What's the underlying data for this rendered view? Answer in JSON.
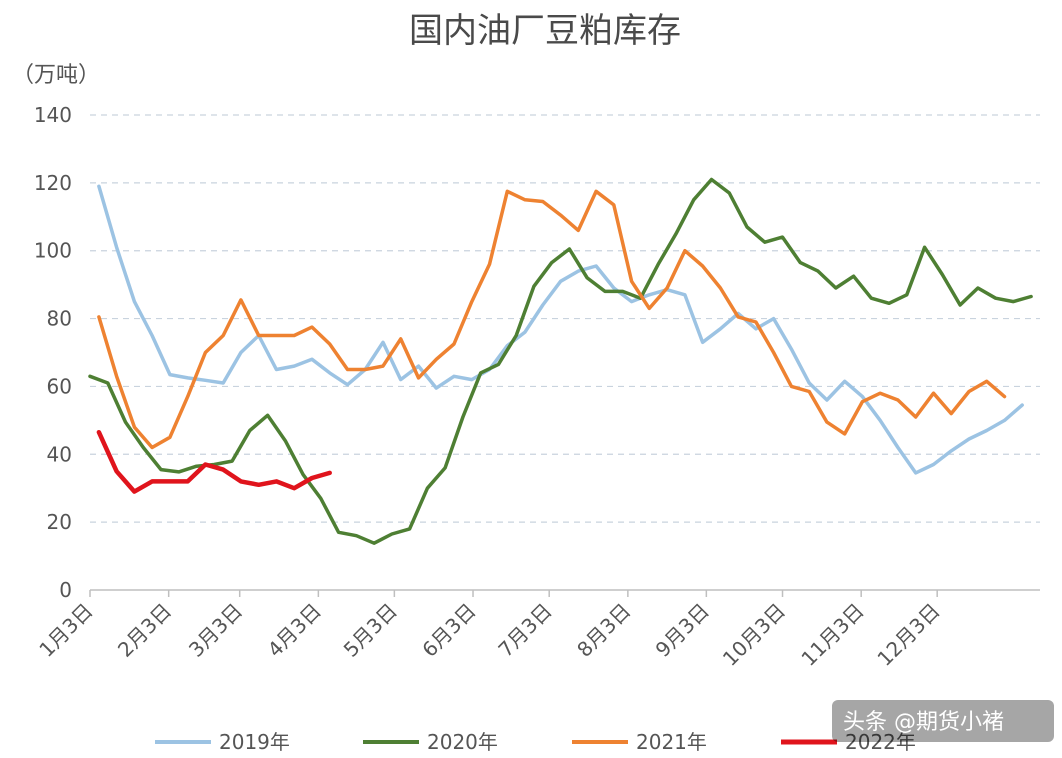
{
  "chart_data": {
    "type": "line",
    "title": "国内油厂豆粕库存",
    "unit_label": "（万吨）",
    "ylim": [
      0,
      140
    ],
    "y_ticks": [
      0,
      20,
      40,
      60,
      80,
      100,
      120,
      140
    ],
    "grid": true,
    "legend_position": "bottom",
    "x_ticks": [
      {
        "label": "1月3日",
        "week": 1
      },
      {
        "label": "2月3日",
        "week": 5.43
      },
      {
        "label": "3月3日",
        "week": 9.43
      },
      {
        "label": "4月3日",
        "week": 13.86
      },
      {
        "label": "5月3日",
        "week": 18.14
      },
      {
        "label": "6月3日",
        "week": 22.57
      },
      {
        "label": "7月3日",
        "week": 26.86
      },
      {
        "label": "8月3日",
        "week": 31.29
      },
      {
        "label": "9月3日",
        "week": 35.71
      },
      {
        "label": "10月3日",
        "week": 40
      },
      {
        "label": "11月3日",
        "week": 44.43
      },
      {
        "label": "12月3日",
        "week": 48.71
      }
    ],
    "series": [
      {
        "name": "2019年",
        "color": "#9cc3e3",
        "points": [
          [
            1.5,
            119
          ],
          [
            2.5,
            101
          ],
          [
            3.5,
            85
          ],
          [
            4.5,
            75
          ],
          [
            5.5,
            63.5
          ],
          [
            6.5,
            62.5
          ],
          [
            7.5,
            61.8
          ],
          [
            8.5,
            61
          ],
          [
            9.5,
            70
          ],
          [
            10.5,
            75
          ],
          [
            11.5,
            65
          ],
          [
            12.5,
            66
          ],
          [
            13.5,
            68
          ],
          [
            14.5,
            64
          ],
          [
            15.5,
            60.5
          ],
          [
            16.5,
            65
          ],
          [
            17.5,
            73
          ],
          [
            18.5,
            62
          ],
          [
            19.5,
            66
          ],
          [
            20.5,
            59.5
          ],
          [
            21.5,
            63
          ],
          [
            22.5,
            62
          ],
          [
            23.5,
            65
          ],
          [
            24.5,
            72
          ],
          [
            25.5,
            76
          ],
          [
            26.5,
            84
          ],
          [
            27.5,
            91
          ],
          [
            28.5,
            94
          ],
          [
            29.5,
            95.5
          ],
          [
            30.5,
            89
          ],
          [
            31.5,
            85
          ],
          [
            32.5,
            87
          ],
          [
            33.5,
            88.5
          ],
          [
            34.5,
            87
          ],
          [
            35.5,
            73
          ],
          [
            36.5,
            77
          ],
          [
            37.5,
            81.5
          ],
          [
            38.5,
            77
          ],
          [
            39.5,
            80
          ],
          [
            40.5,
            71
          ],
          [
            41.5,
            61
          ],
          [
            42.5,
            56
          ],
          [
            43.5,
            61.5
          ],
          [
            44.5,
            57
          ],
          [
            45.5,
            50
          ],
          [
            46.5,
            42
          ],
          [
            47.5,
            34.5
          ],
          [
            48.5,
            37
          ],
          [
            49.5,
            41
          ],
          [
            50.5,
            44.5
          ],
          [
            51.5,
            47
          ],
          [
            52.5,
            50
          ],
          [
            53.5,
            54.5
          ]
        ]
      },
      {
        "name": "2020年",
        "color": "#4e7f33",
        "points": [
          [
            1,
            63
          ],
          [
            2,
            61
          ],
          [
            3,
            49.5
          ],
          [
            4,
            42
          ],
          [
            5,
            35.5
          ],
          [
            6,
            34.8
          ],
          [
            7,
            36.5
          ],
          [
            8,
            37
          ],
          [
            9,
            38
          ],
          [
            10,
            47
          ],
          [
            11,
            51.5
          ],
          [
            12,
            44
          ],
          [
            13,
            34
          ],
          [
            14,
            27
          ],
          [
            15,
            17
          ],
          [
            16,
            16
          ],
          [
            17,
            13.8
          ],
          [
            18,
            16.5
          ],
          [
            19,
            18
          ],
          [
            20,
            30
          ],
          [
            21,
            36
          ],
          [
            22,
            51
          ],
          [
            23,
            64
          ],
          [
            24,
            66.5
          ],
          [
            25,
            75
          ],
          [
            26,
            89.5
          ],
          [
            27,
            96.5
          ],
          [
            28,
            100.5
          ],
          [
            29,
            92
          ],
          [
            30,
            88
          ],
          [
            31,
            88
          ],
          [
            32,
            86
          ],
          [
            33,
            96
          ],
          [
            34,
            105
          ],
          [
            35,
            115
          ],
          [
            36,
            121
          ],
          [
            37,
            117
          ],
          [
            38,
            107
          ],
          [
            39,
            102.5
          ],
          [
            40,
            104
          ],
          [
            41,
            96.5
          ],
          [
            42,
            94
          ],
          [
            43,
            89
          ],
          [
            44,
            92.5
          ],
          [
            45,
            86
          ],
          [
            46,
            84.5
          ],
          [
            47,
            87
          ],
          [
            48,
            101
          ],
          [
            49,
            93
          ],
          [
            50,
            84
          ],
          [
            51,
            89
          ],
          [
            52,
            86
          ],
          [
            53,
            85
          ],
          [
            54,
            86.5
          ]
        ]
      },
      {
        "name": "2021年",
        "color": "#ee8231",
        "points": [
          [
            1.5,
            80.5
          ],
          [
            2.5,
            63
          ],
          [
            3.5,
            48
          ],
          [
            4.5,
            42
          ],
          [
            5.5,
            45
          ],
          [
            6.5,
            57
          ],
          [
            7.5,
            70
          ],
          [
            8.5,
            75
          ],
          [
            9.5,
            85.5
          ],
          [
            10.5,
            75
          ],
          [
            11.5,
            75
          ],
          [
            12.5,
            75
          ],
          [
            13.5,
            77.5
          ],
          [
            14.5,
            72.5
          ],
          [
            15.5,
            65
          ],
          [
            16.5,
            65
          ],
          [
            17.5,
            66
          ],
          [
            18.5,
            74
          ],
          [
            19.5,
            62.5
          ],
          [
            20.5,
            68
          ],
          [
            21.5,
            72.5
          ],
          [
            22.5,
            85
          ],
          [
            23.5,
            96
          ],
          [
            24.5,
            117.5
          ],
          [
            25.5,
            115
          ],
          [
            26.5,
            114.5
          ],
          [
            27.5,
            110.5
          ],
          [
            28.5,
            106
          ],
          [
            29.5,
            117.5
          ],
          [
            30.5,
            113.5
          ],
          [
            31.5,
            91
          ],
          [
            32.5,
            83
          ],
          [
            33.5,
            89
          ],
          [
            34.5,
            100
          ],
          [
            35.5,
            95.5
          ],
          [
            36.5,
            89
          ],
          [
            37.5,
            80.5
          ],
          [
            38.5,
            79
          ],
          [
            39.5,
            70
          ],
          [
            40.5,
            60
          ],
          [
            41.5,
            58.5
          ],
          [
            42.5,
            49.5
          ],
          [
            43.5,
            46
          ],
          [
            44.5,
            55.5
          ],
          [
            45.5,
            58
          ],
          [
            46.5,
            56
          ],
          [
            47.5,
            51
          ],
          [
            48.5,
            58
          ],
          [
            49.5,
            52
          ],
          [
            50.5,
            58.5
          ],
          [
            51.5,
            61.5
          ],
          [
            52.5,
            57
          ]
        ]
      },
      {
        "name": "2022年",
        "color": "#e0141c",
        "points": [
          [
            1.5,
            46.5
          ],
          [
            2.5,
            35
          ],
          [
            3.5,
            29
          ],
          [
            4.5,
            32
          ],
          [
            5.5,
            32
          ],
          [
            6.5,
            32
          ],
          [
            7.5,
            37
          ],
          [
            8.5,
            35.5
          ],
          [
            9.5,
            32
          ],
          [
            10.5,
            31
          ],
          [
            11.5,
            32
          ],
          [
            12.5,
            30
          ],
          [
            13.5,
            33
          ],
          [
            14.5,
            34.5
          ]
        ]
      }
    ]
  },
  "watermark": "头条 @期货小褚"
}
